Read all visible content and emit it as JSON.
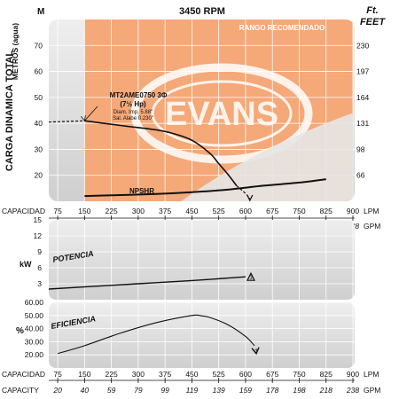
{
  "chart_data": [
    {
      "type": "line",
      "panel": "head",
      "title": "3450 RPM",
      "ylabel": "CARGA DINAMICA TOTAL",
      "yunit_left": "METROS (agua)",
      "yunit_left_letter": "M",
      "yunit_right": "Ft. FEET",
      "ylim": [
        10,
        80
      ],
      "xlim": [
        50,
        900
      ],
      "yticks_left": [
        20,
        30,
        40,
        50,
        60,
        70
      ],
      "yticks_right": [
        "66",
        "98",
        "131",
        "164",
        "197",
        "230"
      ],
      "recommended_range_label": "RANGO RECOMENDADO",
      "recommended_range_x": [
        150,
        900
      ],
      "model_label": {
        "model": "MT2AME0750 3Φ",
        "power": "(7½ Hp)",
        "impeller": "Diam. Imp. 5.88\"",
        "vane": "Sal. Alabe 0.230\""
      },
      "logo_text": "EVANS",
      "series": [
        {
          "name": "",
          "points": [
            [
              50,
              40.5
            ],
            [
              150,
              41
            ],
            [
              250,
              39.2
            ],
            [
              350,
              37.5
            ],
            [
              400,
              36
            ],
            [
              450,
              33.5
            ],
            [
              500,
              28.5
            ],
            [
              525,
              24.5
            ],
            [
              550,
              20.5
            ],
            [
              575,
              16
            ],
            [
              600,
              13
            ],
            [
              612,
              11
            ]
          ]
        },
        {
          "name": "NPSHR",
          "points": [
            [
              150,
              12
            ],
            [
              250,
              12.4
            ],
            [
              350,
              12.8
            ],
            [
              450,
              13.5
            ],
            [
              550,
              14.5
            ],
            [
              650,
              16
            ],
            [
              750,
              17.2
            ],
            [
              825,
              18.5
            ]
          ]
        }
      ],
      "dashed_segments": [
        [
          [
            50,
            40.5
          ],
          [
            150,
            41
          ]
        ],
        [
          [
            575,
            16
          ],
          [
            600,
            13
          ],
          [
            612,
            11
          ]
        ]
      ]
    },
    {
      "type": "line",
      "panel": "power",
      "title": "POTENCIA",
      "ylabel": "kW",
      "ylim": [
        0,
        15
      ],
      "xlim": [
        50,
        900
      ],
      "yticks": [
        3,
        6,
        9,
        12,
        15
      ],
      "series": [
        {
          "name": "POTENCIA",
          "points": [
            [
              50,
              2
            ],
            [
              150,
              2.4
            ],
            [
              300,
              3.0
            ],
            [
              450,
              3.6
            ],
            [
              600,
              4.3
            ]
          ]
        }
      ],
      "marker": {
        "x": 615,
        "y": 4.3,
        "label": "3"
      }
    },
    {
      "type": "line",
      "panel": "efficiency",
      "title": "EFICIENCIA",
      "ylabel": "%",
      "ylim": [
        10,
        60
      ],
      "xlim": [
        50,
        900
      ],
      "yticks": [
        "20.00",
        "30.00",
        "40.00",
        "50.00",
        "60.00"
      ],
      "ytick_values": [
        20,
        30,
        40,
        50,
        60
      ],
      "series": [
        {
          "name": "EFICIENCIA",
          "points": [
            [
              75,
              21
            ],
            [
              150,
              27
            ],
            [
              250,
              36.5
            ],
            [
              350,
              44.5
            ],
            [
              450,
              50
            ],
            [
              475,
              49.8
            ],
            [
              500,
              48.5
            ],
            [
              550,
              43
            ],
            [
              600,
              34
            ],
            [
              625,
              27
            ]
          ]
        }
      ],
      "marker": {
        "x": 630,
        "y": 23,
        "label": "3"
      }
    }
  ],
  "axis": {
    "capacity_label": "CAPACIDAD",
    "capacity_label_bottom": "CAPACITY",
    "lpm_label": "LPM",
    "gpm_label": "GPM",
    "lpm_ticks": [
      "75",
      "150",
      "225",
      "300",
      "375",
      "450",
      "525",
      "600",
      "675",
      "750",
      "825",
      "900"
    ],
    "lpm_values": [
      75,
      150,
      225,
      300,
      375,
      450,
      525,
      600,
      675,
      750,
      825,
      900
    ],
    "gpm_ticks": [
      "20",
      "40",
      "59",
      "79",
      "99",
      "119",
      "139",
      "159",
      "178",
      "198",
      "218",
      "238"
    ]
  },
  "colors": {
    "panel_bg": "#dcdcdc",
    "recommended_range": "#f5a878",
    "curve": "#111111",
    "grid": "#ffffff",
    "logo": "#ffffff"
  }
}
